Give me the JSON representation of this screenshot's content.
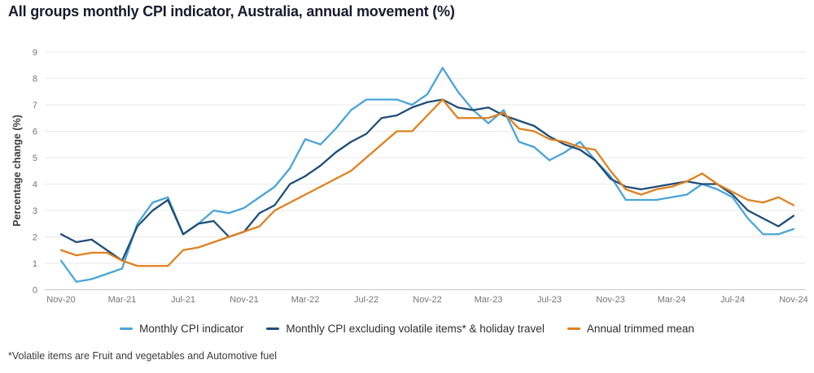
{
  "title": "All groups monthly CPI indicator, Australia, annual movement (%)",
  "footnote": "*Volatile items are Fruit and vegetables and Automotive fuel",
  "y_axis": {
    "label": "Percentage change (%)",
    "ticks": [
      0,
      1,
      2,
      3,
      4,
      5,
      6,
      7,
      8,
      9
    ]
  },
  "colors": {
    "monthly_cpi": "#4BA4D8",
    "cpi_excluding_volatile": "#1E4E79",
    "trimmed_mean": "#E0801E",
    "gridline": "#EAEAEA",
    "axis_line": "#C8C8C8",
    "tick_text": "#757575",
    "title_text": "#1A1A2E"
  },
  "legend": {
    "items": [
      {
        "label": "Monthly CPI indicator"
      },
      {
        "label": "Monthly CPI excluding volatile items* & holiday travel"
      },
      {
        "label": "Annual trimmed mean"
      }
    ]
  },
  "chart_data": {
    "type": "line",
    "title": "All groups monthly CPI indicator, Australia, annual movement (%)",
    "xlabel": "",
    "ylabel": "Percentage change (%)",
    "ylim": [
      0,
      9
    ],
    "grid": "horizontal",
    "legend_position": "bottom-center",
    "x_tick_every": 4,
    "months": [
      "Nov-20",
      "Dec-20",
      "Jan-21",
      "Feb-21",
      "Mar-21",
      "Apr-21",
      "May-21",
      "Jun-21",
      "Jul-21",
      "Aug-21",
      "Sep-21",
      "Oct-21",
      "Nov-21",
      "Dec-21",
      "Jan-22",
      "Feb-22",
      "Mar-22",
      "Apr-22",
      "May-22",
      "Jun-22",
      "Jul-22",
      "Aug-22",
      "Sep-22",
      "Oct-22",
      "Nov-22",
      "Dec-22",
      "Jan-23",
      "Feb-23",
      "Mar-23",
      "Apr-23",
      "May-23",
      "Jun-23",
      "Jul-23",
      "Aug-23",
      "Sep-23",
      "Oct-23",
      "Nov-23",
      "Dec-23",
      "Jan-24",
      "Feb-24",
      "Mar-24",
      "Apr-24",
      "May-24",
      "Jun-24",
      "Jul-24",
      "Aug-24",
      "Sep-24",
      "Oct-24",
      "Nov-24"
    ],
    "series": [
      {
        "name": "Monthly CPI indicator",
        "color": "#4BA4D8",
        "values": [
          1.1,
          0.3,
          0.4,
          0.6,
          0.8,
          2.5,
          3.3,
          3.5,
          2.1,
          2.5,
          3.0,
          2.9,
          3.1,
          3.5,
          3.9,
          4.6,
          5.7,
          5.5,
          6.1,
          6.8,
          7.2,
          7.2,
          7.2,
          7.0,
          7.4,
          8.4,
          7.5,
          6.8,
          6.3,
          6.8,
          5.6,
          5.4,
          4.9,
          5.2,
          5.6,
          4.9,
          4.3,
          3.4,
          3.4,
          3.4,
          3.5,
          3.6,
          4.0,
          3.8,
          3.5,
          2.7,
          2.1,
          2.1,
          2.3
        ]
      },
      {
        "name": "Monthly CPI excluding volatile items* & holiday travel",
        "color": "#1E4E79",
        "values": [
          2.1,
          1.8,
          1.9,
          1.5,
          1.1,
          2.4,
          3.0,
          3.4,
          2.1,
          2.5,
          2.6,
          2.0,
          2.2,
          2.9,
          3.2,
          4.0,
          4.3,
          4.7,
          5.2,
          5.6,
          5.9,
          6.5,
          6.6,
          6.9,
          7.1,
          7.2,
          6.9,
          6.8,
          6.9,
          6.6,
          6.4,
          6.2,
          5.8,
          5.5,
          5.3,
          4.9,
          4.2,
          3.9,
          3.8,
          3.9,
          4.0,
          4.1,
          4.0,
          4.0,
          3.6,
          3.0,
          2.7,
          2.4,
          2.8
        ]
      },
      {
        "name": "Annual trimmed mean",
        "color": "#E0801E",
        "values": [
          1.5,
          1.3,
          1.4,
          1.4,
          1.1,
          0.9,
          0.9,
          0.9,
          1.5,
          1.6,
          1.8,
          2.0,
          2.2,
          2.4,
          3.0,
          3.3,
          3.6,
          3.9,
          4.2,
          4.5,
          5.0,
          5.5,
          6.0,
          6.0,
          6.6,
          7.2,
          6.5,
          6.5,
          6.5,
          6.7,
          6.1,
          6.0,
          5.7,
          5.6,
          5.4,
          5.3,
          4.5,
          3.8,
          3.6,
          3.8,
          3.9,
          4.1,
          4.4,
          4.0,
          3.7,
          3.4,
          3.3,
          3.5,
          3.2
        ]
      }
    ]
  }
}
